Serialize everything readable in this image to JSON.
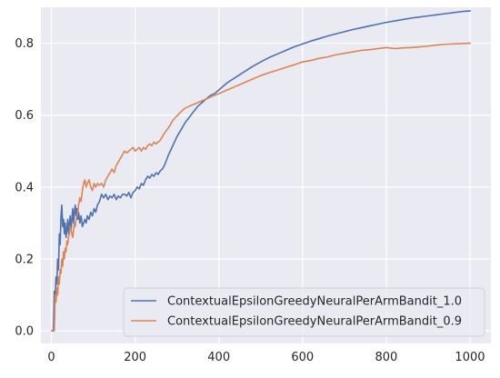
{
  "chart_data": {
    "type": "line",
    "title": "",
    "xlabel": "",
    "ylabel": "",
    "xlim": [
      -25,
      1050
    ],
    "ylim": [
      -0.035,
      0.9
    ],
    "xticks": [
      0,
      200,
      400,
      600,
      800,
      1000
    ],
    "yticks": [
      0.0,
      0.2,
      0.4,
      0.6,
      0.8
    ],
    "xtick_labels": [
      "0",
      "200",
      "400",
      "600",
      "800",
      "1000"
    ],
    "ytick_labels": [
      "0.0",
      "0.2",
      "0.4",
      "0.6",
      "0.8"
    ],
    "grid": true,
    "legend": "bottom-right",
    "series": [
      {
        "name": "ContextualEpsilonGreedyNeuralPerArmBandit_1.0",
        "color": "#4c72b0",
        "x": [
          1,
          5,
          7,
          9,
          11,
          13,
          15,
          17,
          19,
          21,
          23,
          25,
          27,
          29,
          31,
          33,
          35,
          37,
          39,
          41,
          43,
          45,
          47,
          49,
          51,
          53,
          55,
          57,
          59,
          61,
          63,
          65,
          68,
          71,
          74,
          77,
          80,
          83,
          86,
          90,
          94,
          98,
          102,
          106,
          110,
          115,
          120,
          125,
          130,
          135,
          140,
          145,
          150,
          155,
          160,
          165,
          170,
          175,
          180,
          185,
          190,
          195,
          200,
          205,
          210,
          215,
          220,
          225,
          230,
          235,
          240,
          245,
          250,
          255,
          260,
          265,
          270,
          280,
          290,
          300,
          310,
          320,
          330,
          340,
          350,
          360,
          370,
          380,
          390,
          400,
          420,
          440,
          460,
          480,
          500,
          520,
          540,
          560,
          580,
          600,
          620,
          640,
          660,
          680,
          700,
          720,
          740,
          760,
          780,
          800,
          820,
          840,
          860,
          880,
          900,
          920,
          940,
          960,
          980,
          1000
        ],
        "y": [
          0.0,
          0.0,
          0.11,
          0.09,
          0.15,
          0.13,
          0.2,
          0.17,
          0.27,
          0.24,
          0.32,
          0.35,
          0.29,
          0.31,
          0.27,
          0.3,
          0.26,
          0.28,
          0.31,
          0.27,
          0.3,
          0.32,
          0.28,
          0.31,
          0.34,
          0.3,
          0.33,
          0.35,
          0.32,
          0.34,
          0.31,
          0.33,
          0.3,
          0.32,
          0.29,
          0.3,
          0.31,
          0.3,
          0.32,
          0.31,
          0.33,
          0.32,
          0.34,
          0.33,
          0.35,
          0.36,
          0.38,
          0.37,
          0.38,
          0.365,
          0.375,
          0.37,
          0.38,
          0.365,
          0.375,
          0.37,
          0.38,
          0.38,
          0.375,
          0.385,
          0.37,
          0.385,
          0.39,
          0.4,
          0.395,
          0.41,
          0.405,
          0.42,
          0.43,
          0.425,
          0.435,
          0.43,
          0.44,
          0.435,
          0.445,
          0.45,
          0.46,
          0.49,
          0.515,
          0.54,
          0.56,
          0.58,
          0.595,
          0.61,
          0.625,
          0.635,
          0.645,
          0.655,
          0.66,
          0.67,
          0.69,
          0.705,
          0.72,
          0.735,
          0.748,
          0.76,
          0.77,
          0.78,
          0.79,
          0.798,
          0.806,
          0.813,
          0.82,
          0.826,
          0.832,
          0.838,
          0.843,
          0.848,
          0.853,
          0.858,
          0.862,
          0.866,
          0.87,
          0.873,
          0.876,
          0.879,
          0.882,
          0.885,
          0.888,
          0.89
        ]
      },
      {
        "name": "ContextualEpsilonGreedyNeuralPerArmBandit_0.9",
        "color": "#dd8452",
        "x": [
          1,
          5,
          7,
          9,
          11,
          13,
          15,
          17,
          19,
          21,
          23,
          25,
          27,
          29,
          31,
          33,
          35,
          37,
          39,
          41,
          43,
          45,
          47,
          49,
          51,
          53,
          55,
          57,
          59,
          61,
          63,
          65,
          68,
          71,
          74,
          77,
          80,
          83,
          86,
          90,
          94,
          98,
          102,
          106,
          110,
          115,
          120,
          125,
          130,
          135,
          140,
          145,
          150,
          155,
          160,
          165,
          170,
          175,
          180,
          185,
          190,
          195,
          200,
          205,
          210,
          215,
          220,
          225,
          230,
          235,
          240,
          245,
          250,
          255,
          260,
          265,
          270,
          280,
          290,
          300,
          310,
          320,
          330,
          340,
          350,
          360,
          370,
          380,
          390,
          400,
          420,
          440,
          460,
          480,
          500,
          520,
          540,
          560,
          580,
          600,
          620,
          640,
          660,
          680,
          700,
          720,
          740,
          760,
          780,
          800,
          820,
          840,
          860,
          880,
          900,
          920,
          940,
          960,
          980,
          1000
        ],
        "y": [
          0.0,
          0.0,
          0.0,
          0.1,
          0.08,
          0.12,
          0.1,
          0.15,
          0.13,
          0.17,
          0.16,
          0.2,
          0.18,
          0.22,
          0.2,
          0.23,
          0.22,
          0.25,
          0.24,
          0.26,
          0.27,
          0.29,
          0.28,
          0.27,
          0.26,
          0.28,
          0.3,
          0.29,
          0.31,
          0.32,
          0.33,
          0.35,
          0.37,
          0.36,
          0.39,
          0.41,
          0.42,
          0.4,
          0.41,
          0.42,
          0.4,
          0.39,
          0.41,
          0.4,
          0.41,
          0.405,
          0.41,
          0.4,
          0.42,
          0.43,
          0.44,
          0.45,
          0.44,
          0.46,
          0.47,
          0.48,
          0.49,
          0.5,
          0.495,
          0.5,
          0.505,
          0.51,
          0.5,
          0.505,
          0.51,
          0.5,
          0.51,
          0.505,
          0.515,
          0.52,
          0.515,
          0.525,
          0.52,
          0.525,
          0.53,
          0.54,
          0.55,
          0.565,
          0.585,
          0.598,
          0.61,
          0.62,
          0.625,
          0.63,
          0.635,
          0.64,
          0.645,
          0.65,
          0.655,
          0.66,
          0.67,
          0.68,
          0.69,
          0.7,
          0.71,
          0.718,
          0.725,
          0.733,
          0.74,
          0.748,
          0.752,
          0.758,
          0.762,
          0.768,
          0.772,
          0.776,
          0.78,
          0.782,
          0.785,
          0.788,
          0.785,
          0.787,
          0.788,
          0.79,
          0.792,
          0.795,
          0.797,
          0.798,
          0.799,
          0.8
        ]
      }
    ]
  }
}
